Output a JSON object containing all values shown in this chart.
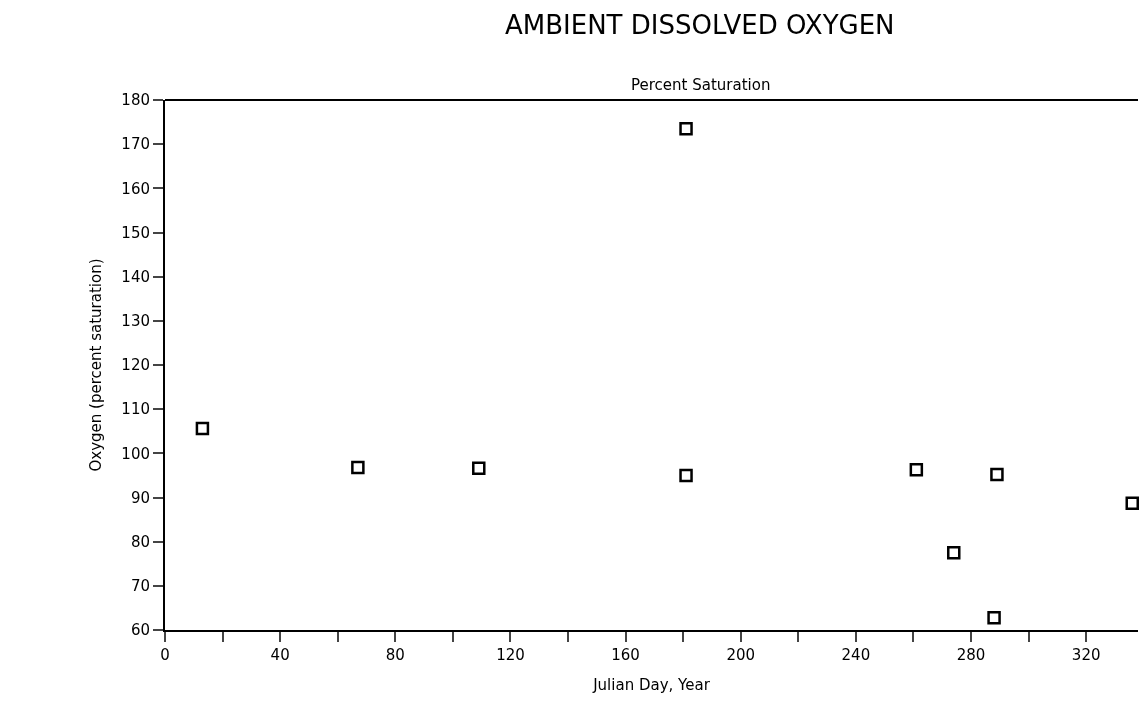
{
  "chart_data": {
    "type": "scatter",
    "title": "AMBIENT DISSOLVED OXYGEN",
    "subtitle": "Percent Saturation",
    "xlabel": "Julian Day, Year",
    "ylabel": "Oxygen (percent saturation)",
    "x": [
      13,
      67,
      109,
      181,
      181,
      261,
      274,
      288,
      289,
      336
    ],
    "values": [
      105.6,
      96.8,
      96.6,
      95.0,
      173.5,
      96.3,
      77.5,
      62.8,
      95.2,
      88.7
    ],
    "color": "#000000",
    "marker": "square",
    "grid": false,
    "legend": false,
    "xlim": [
      0,
      338
    ],
    "xticks": [
      0,
      {
        "value": 20,
        "label": null
      },
      40,
      {
        "value": 60,
        "label": null
      },
      80,
      {
        "value": 100,
        "label": null
      },
      120,
      {
        "value": 140,
        "label": null
      },
      160,
      {
        "value": 180,
        "label": null
      },
      200,
      {
        "value": 220,
        "label": null
      },
      240,
      {
        "value": 260,
        "label": null
      },
      280,
      {
        "value": 300,
        "label": null
      },
      320
    ],
    "ylim": [
      60,
      180
    ],
    "yticks": [
      60,
      70,
      80,
      90,
      100,
      110,
      120,
      130,
      140,
      150,
      160,
      170,
      180
    ]
  }
}
